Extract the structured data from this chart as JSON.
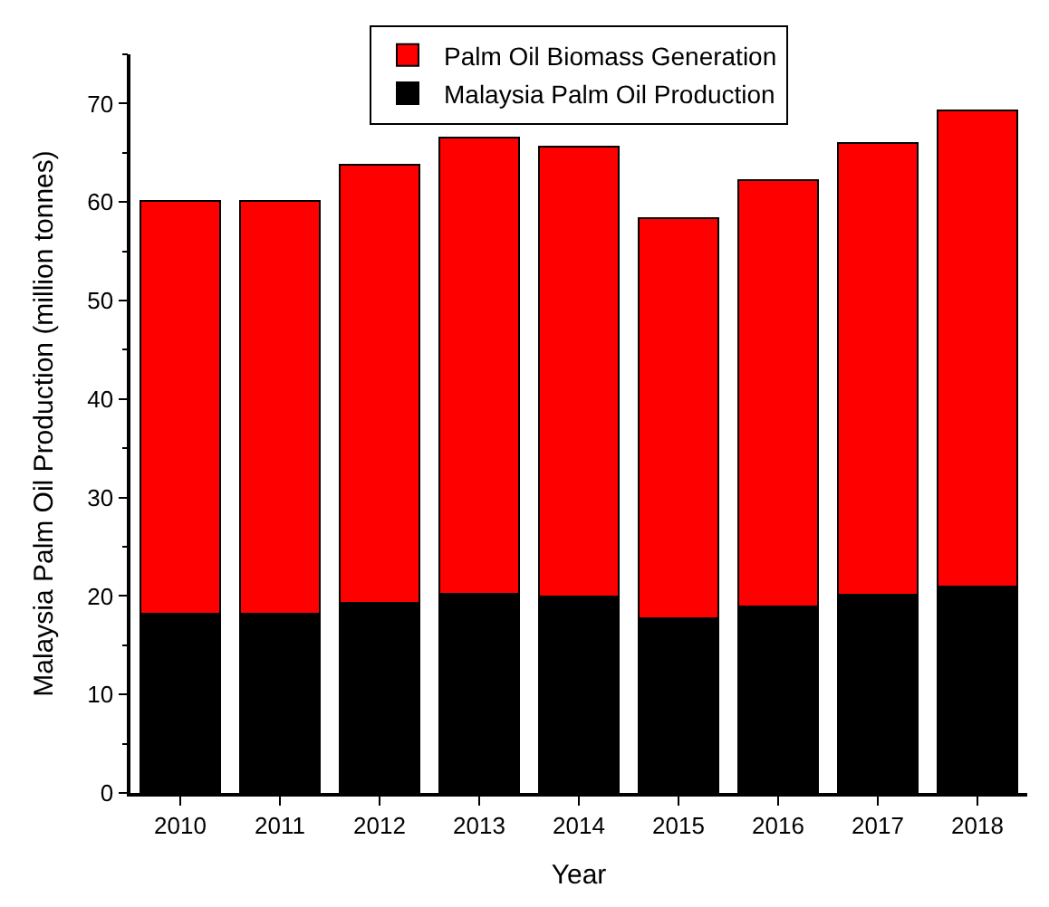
{
  "chart_data": {
    "type": "bar",
    "stacked": true,
    "xlabel": "Year",
    "ylabel": "Malaysia Palm Oil Production (million tonnes)",
    "categories": [
      "2010",
      "2011",
      "2012",
      "2013",
      "2014",
      "2015",
      "2016",
      "2017",
      "2018"
    ],
    "series": [
      {
        "name": "Malaysia Palm Oil Production",
        "color": "#000000",
        "values": [
          18.2,
          18.2,
          19.3,
          20.2,
          19.9,
          17.7,
          18.9,
          20.1,
          21.0
        ]
      },
      {
        "name": "Palm Oil Biomass Generation",
        "color": "#ff0000",
        "values": [
          41.9,
          41.9,
          44.5,
          46.3,
          45.7,
          40.7,
          43.3,
          45.9,
          48.3
        ]
      }
    ],
    "ylim": [
      0,
      75
    ],
    "yticks": [
      0,
      10,
      20,
      30,
      40,
      50,
      60,
      70
    ],
    "legend": "top"
  }
}
